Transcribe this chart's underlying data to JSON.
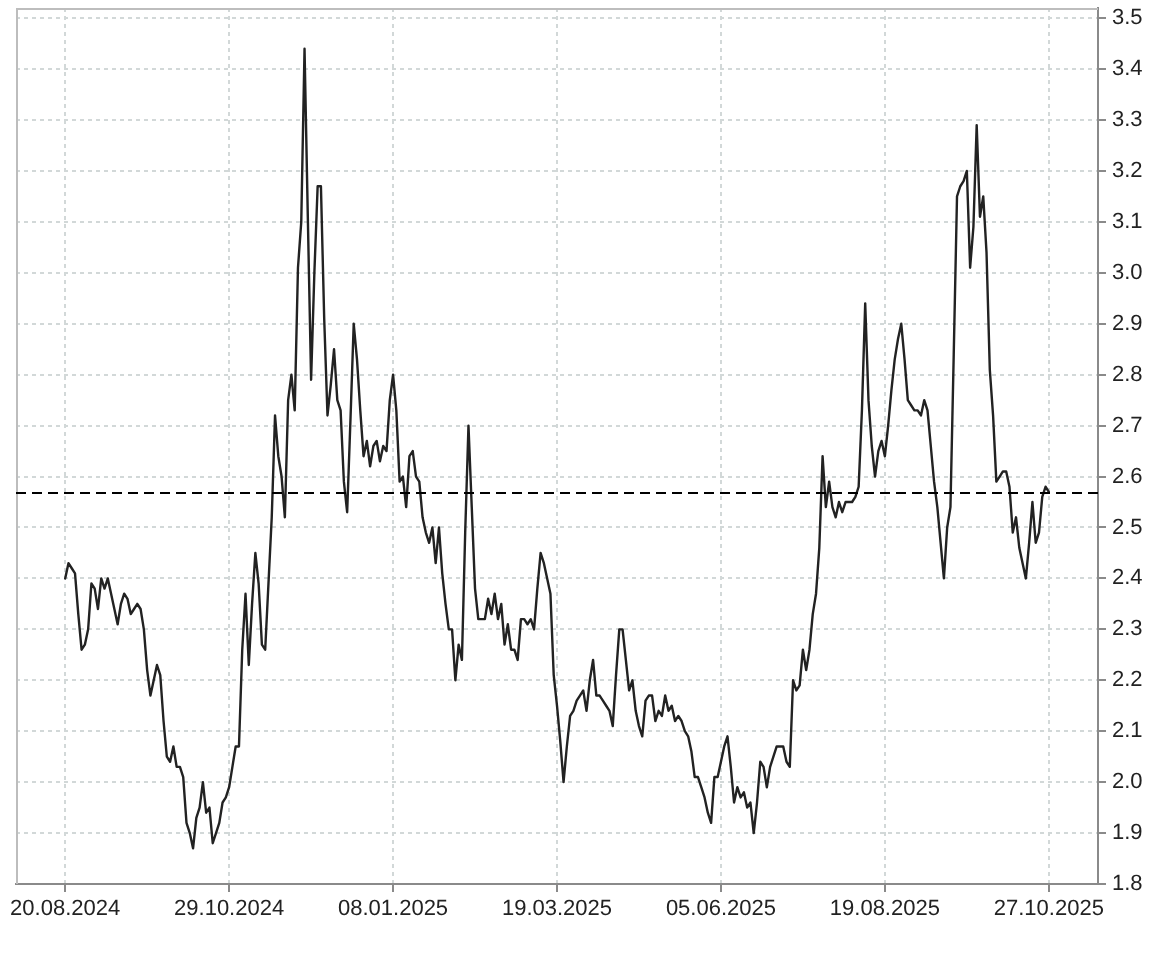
{
  "chart_data": {
    "type": "line",
    "color": "#222222",
    "categories": [
      "20.08.2024",
      null,
      null,
      null,
      null,
      null,
      null,
      null,
      null,
      null,
      null,
      null,
      null,
      null,
      null,
      null,
      null,
      null,
      null,
      null,
      null,
      null,
      null,
      null,
      null,
      null,
      null,
      null,
      null,
      null,
      null,
      null,
      null,
      null,
      null,
      null,
      null,
      null,
      null,
      null,
      null,
      null,
      null,
      null,
      null,
      null,
      null,
      null,
      null,
      null,
      "29.10.2024",
      null,
      null,
      null,
      null,
      null,
      null,
      null,
      null,
      null,
      null,
      null,
      null,
      null,
      null,
      null,
      null,
      null,
      null,
      null,
      null,
      null,
      null,
      null,
      null,
      null,
      null,
      null,
      null,
      null,
      null,
      null,
      null,
      null,
      null,
      null,
      null,
      null,
      null,
      null,
      null,
      null,
      null,
      null,
      null,
      null,
      null,
      null,
      null,
      null,
      "08.01.2025",
      null,
      null,
      null,
      null,
      null,
      null,
      null,
      null,
      null,
      null,
      null,
      null,
      null,
      null,
      null,
      null,
      null,
      null,
      null,
      null,
      null,
      null,
      null,
      null,
      null,
      null,
      null,
      null,
      null,
      null,
      null,
      null,
      null,
      null,
      null,
      null,
      null,
      null,
      null,
      null,
      null,
      null,
      null,
      null,
      null,
      null,
      null,
      null,
      null,
      "19.03.2025",
      null,
      null,
      null,
      null,
      null,
      null,
      null,
      null,
      null,
      null,
      null,
      null,
      null,
      null,
      null,
      null,
      null,
      null,
      null,
      null,
      null,
      null,
      null,
      null,
      null,
      null,
      null,
      null,
      null,
      null,
      null,
      null,
      null,
      null,
      null,
      null,
      null,
      null,
      null,
      null,
      null,
      null,
      null,
      null,
      null,
      null,
      null,
      null,
      null,
      "05.06.2025",
      null,
      null,
      null,
      null,
      null,
      null,
      null,
      null,
      null,
      null,
      null,
      null,
      null,
      null,
      null,
      null,
      null,
      null,
      null,
      null,
      null,
      null,
      null,
      null,
      null,
      null,
      null,
      null,
      null,
      null,
      null,
      null,
      null,
      null,
      null,
      null,
      null,
      null,
      null,
      null,
      null,
      null,
      null,
      null,
      null,
      null,
      null,
      null,
      null,
      "19.08.2025",
      null,
      null,
      null,
      null,
      null,
      null,
      null,
      null,
      null,
      null,
      null,
      null,
      null,
      null,
      null,
      null,
      null,
      null,
      null,
      null,
      null,
      null,
      null,
      null,
      null,
      null,
      null,
      null,
      null,
      null,
      null,
      null,
      null,
      null,
      null,
      null,
      null,
      null,
      null,
      null,
      null,
      null,
      null,
      null,
      null,
      null,
      null,
      null,
      null,
      "27.10.2025"
    ],
    "values": [
      2.4,
      2.43,
      2.42,
      2.41,
      2.33,
      2.26,
      2.27,
      2.3,
      2.39,
      2.38,
      2.34,
      2.4,
      2.38,
      2.4,
      2.37,
      2.34,
      2.31,
      2.35,
      2.37,
      2.36,
      2.33,
      2.34,
      2.35,
      2.34,
      2.3,
      2.22,
      2.17,
      2.2,
      2.23,
      2.21,
      2.12,
      2.05,
      2.04,
      2.07,
      2.03,
      2.03,
      2.01,
      1.92,
      1.9,
      1.87,
      1.93,
      1.95,
      2.0,
      1.94,
      1.95,
      1.88,
      1.9,
      1.92,
      1.96,
      1.97,
      1.99,
      2.03,
      2.07,
      2.07,
      2.26,
      2.37,
      2.23,
      2.35,
      2.45,
      2.39,
      2.27,
      2.26,
      2.39,
      2.52,
      2.72,
      2.64,
      2.6,
      2.52,
      2.75,
      2.8,
      2.73,
      3.01,
      3.1,
      3.44,
      3.11,
      2.79,
      3.0,
      3.17,
      3.17,
      2.91,
      2.72,
      2.78,
      2.85,
      2.75,
      2.73,
      2.59,
      2.53,
      2.71,
      2.9,
      2.83,
      2.73,
      2.64,
      2.67,
      2.62,
      2.66,
      2.67,
      2.63,
      2.66,
      2.65,
      2.75,
      2.8,
      2.73,
      2.59,
      2.6,
      2.54,
      2.64,
      2.65,
      2.6,
      2.59,
      2.52,
      2.49,
      2.47,
      2.5,
      2.43,
      2.5,
      2.41,
      2.35,
      2.3,
      2.3,
      2.2,
      2.27,
      2.24,
      2.49,
      2.7,
      2.54,
      2.38,
      2.32,
      2.32,
      2.32,
      2.36,
      2.33,
      2.37,
      2.32,
      2.35,
      2.27,
      2.31,
      2.26,
      2.26,
      2.24,
      2.32,
      2.32,
      2.31,
      2.32,
      2.3,
      2.38,
      2.45,
      2.43,
      2.4,
      2.37,
      2.21,
      2.15,
      2.08,
      2.0,
      2.07,
      2.13,
      2.14,
      2.16,
      2.17,
      2.18,
      2.14,
      2.2,
      2.24,
      2.17,
      2.17,
      2.16,
      2.15,
      2.14,
      2.11,
      2.21,
      2.3,
      2.3,
      2.24,
      2.18,
      2.2,
      2.14,
      2.11,
      2.09,
      2.16,
      2.17,
      2.17,
      2.12,
      2.14,
      2.13,
      2.17,
      2.14,
      2.15,
      2.12,
      2.13,
      2.12,
      2.1,
      2.09,
      2.06,
      2.01,
      2.01,
      1.99,
      1.97,
      1.94,
      1.92,
      2.01,
      2.01,
      2.04,
      2.07,
      2.09,
      2.03,
      1.96,
      1.99,
      1.97,
      1.98,
      1.95,
      1.96,
      1.9,
      1.96,
      2.04,
      2.03,
      1.99,
      2.03,
      2.05,
      2.07,
      2.07,
      2.07,
      2.04,
      2.03,
      2.2,
      2.18,
      2.19,
      2.26,
      2.22,
      2.26,
      2.33,
      2.37,
      2.46,
      2.64,
      2.54,
      2.59,
      2.54,
      2.52,
      2.55,
      2.53,
      2.55,
      2.55,
      2.55,
      2.56,
      2.58,
      2.73,
      2.94,
      2.75,
      2.66,
      2.6,
      2.65,
      2.67,
      2.64,
      2.7,
      2.77,
      2.83,
      2.87,
      2.9,
      2.83,
      2.75,
      2.74,
      2.73,
      2.73,
      2.72,
      2.75,
      2.73,
      2.66,
      2.59,
      2.54,
      2.47,
      2.4,
      2.5,
      2.54,
      2.84,
      3.15,
      3.17,
      3.18,
      3.2,
      3.01,
      3.09,
      3.29,
      3.11,
      3.15,
      3.04,
      2.81,
      2.72,
      2.59,
      2.6,
      2.61,
      2.61,
      2.58,
      2.49,
      2.52,
      2.46,
      2.43,
      2.4,
      2.47,
      2.55,
      2.47,
      2.49,
      2.56,
      2.58,
      2.57
    ],
    "ylim": [
      1.8,
      3.52
    ],
    "yticks": [
      1.8,
      1.9,
      {
        "value": 2,
        "label": "2.0"
      },
      2.1,
      2.2,
      2.3,
      2.4,
      2.5,
      2.6,
      2.7,
      2.8,
      2.9,
      {
        "value": 3,
        "label": "3.0"
      },
      3.1,
      3.2,
      3.3,
      3.4,
      3.5
    ],
    "grid": true,
    "ref_lines": [
      {
        "axis": "y",
        "value": 2.57,
        "line_style": "dashed",
        "color": "#000000"
      }
    ]
  }
}
